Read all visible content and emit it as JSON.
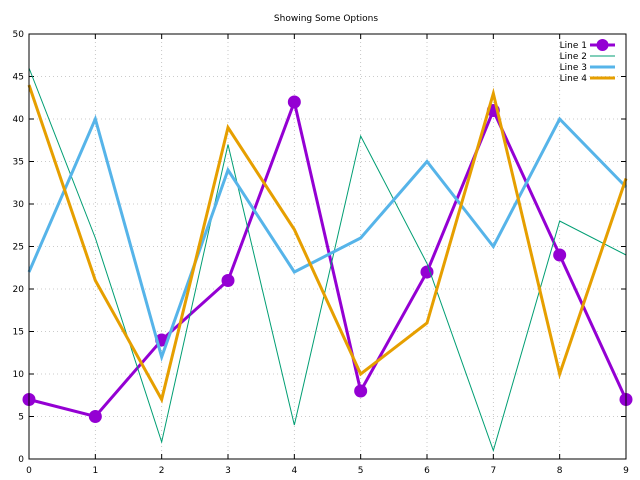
{
  "chart_data": {
    "type": "line",
    "title": "Showing Some Options",
    "xlabel": "",
    "ylabel": "",
    "xlim": [
      0,
      9
    ],
    "ylim": [
      0,
      50
    ],
    "xticks": [
      "0",
      "1",
      "2",
      "3",
      "4",
      "5",
      "6",
      "7",
      "8",
      "9"
    ],
    "yticks": [
      "0",
      "5",
      "10",
      "15",
      "20",
      "25",
      "30",
      "35",
      "40",
      "45",
      "50"
    ],
    "grid": true,
    "legend_position": "top-right",
    "x": [
      0,
      1,
      2,
      3,
      4,
      5,
      6,
      7,
      8,
      9
    ],
    "series": [
      {
        "name": "Line 1",
        "color": "#9400d3",
        "marker": "circle",
        "values": [
          7,
          5,
          14,
          21,
          42,
          8,
          22,
          41,
          24,
          7
        ]
      },
      {
        "name": "Line 2",
        "color": "#009e73",
        "marker": "none",
        "values": [
          46,
          26,
          2,
          37,
          4,
          38,
          23,
          1,
          28,
          24
        ]
      },
      {
        "name": "Line 3",
        "color": "#56b4e9",
        "marker": "none",
        "values": [
          22,
          40,
          12,
          34,
          22,
          26,
          35,
          25,
          40,
          32
        ]
      },
      {
        "name": "Line 4",
        "color": "#e69f00",
        "marker": "none",
        "values": [
          44,
          21,
          7,
          39,
          27,
          10,
          16,
          43,
          10,
          33
        ]
      }
    ]
  }
}
